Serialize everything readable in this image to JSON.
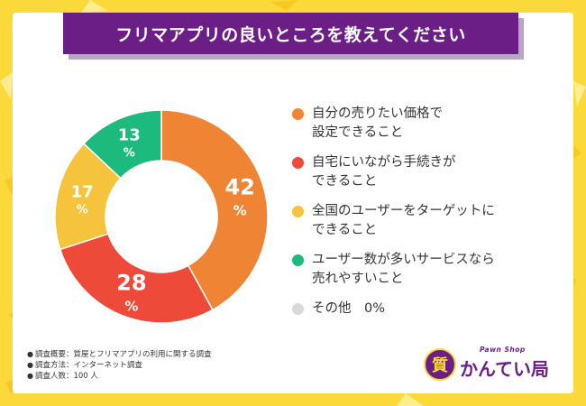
{
  "title": "フリマアプリの良いところを教えてください",
  "chart_data": {
    "type": "donut",
    "title": "フリマアプリの良いところを教えてください",
    "unit": "%",
    "slices": [
      {
        "name": "自分の売りたい価格で設定できること",
        "lines": [
          "自分の売りたい価格で",
          "設定できること"
        ],
        "value": 42,
        "color": "#ef8534"
      },
      {
        "name": "自宅にいながら手続きができること",
        "lines": [
          "自宅にいながら手続きが",
          "できること"
        ],
        "value": 28,
        "color": "#ee4a3a"
      },
      {
        "name": "全国のユーザーをターゲットにできること",
        "lines": [
          "全国のユーザーをターゲットに",
          "できること"
        ],
        "value": 17,
        "color": "#f6c33c"
      },
      {
        "name": "ユーザー数が多いサービスなら売れやすいこと",
        "lines": [
          "ユーザー数が多いサービスなら",
          "売れやすいこと"
        ],
        "value": 13,
        "color": "#1dba7d"
      },
      {
        "name": "その他",
        "lines": [
          "その他　0%"
        ],
        "value": 0,
        "color": "#d9d9d9"
      }
    ]
  },
  "notes": [
    "調査概要：質屋とフリマアプリの利用に関する調査",
    "調査方法：インターネット調査",
    "調査人数：100 人"
  ],
  "logo": {
    "mark": "質",
    "name": "かんてい局",
    "sub": "Pawn Shop"
  }
}
